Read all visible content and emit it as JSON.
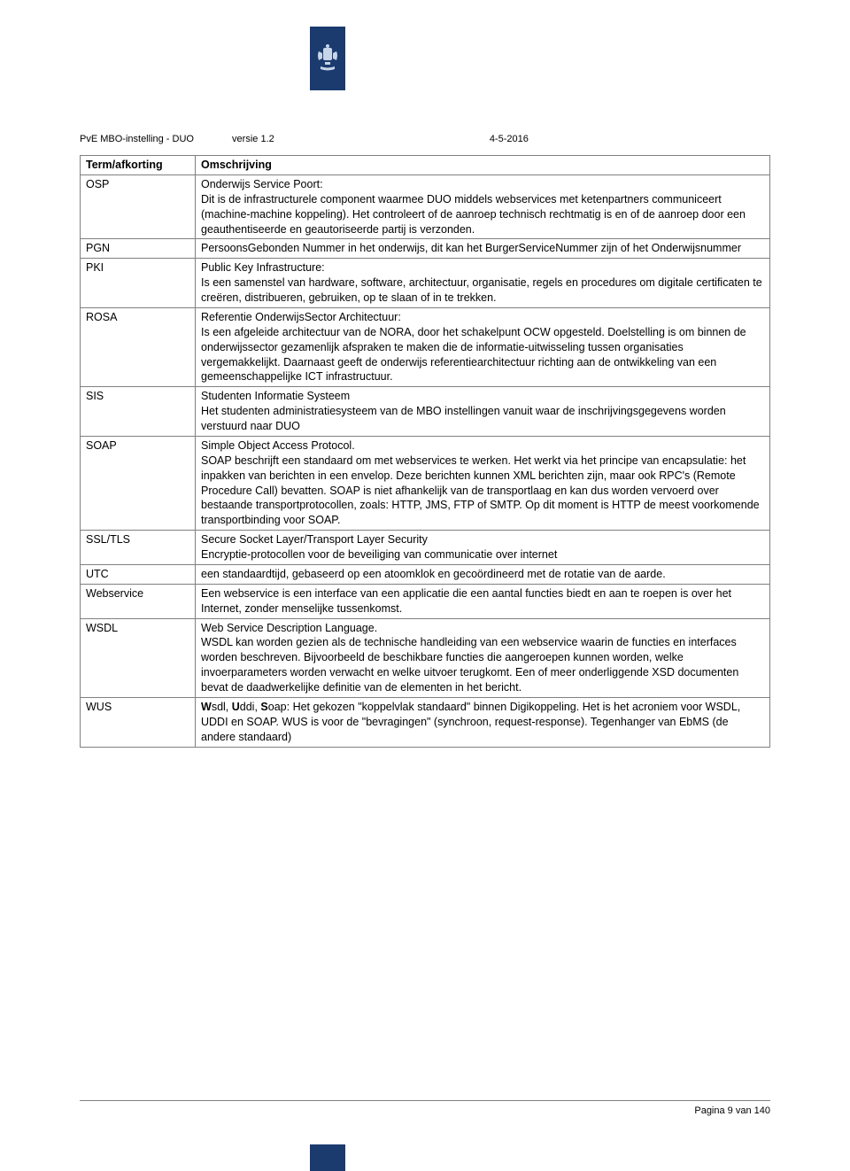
{
  "colors": {
    "logo_bg": "#1b3b6f",
    "border": "#808080",
    "text": "#000000",
    "background": "#ffffff"
  },
  "header": {
    "doc": "PvE MBO-instelling - DUO",
    "version": "versie 1.2",
    "date": "4-5-2016"
  },
  "table": {
    "col1_header": "Term/afkorting",
    "col2_header": "Omschrijving",
    "rows": [
      {
        "term": "OSP",
        "desc": "Onderwijs Service Poort:\nDit is de infrastructurele component waarmee DUO middels webservices met ketenpartners communiceert (machine-machine koppeling). Het controleert of de aanroep technisch rechtmatig is en of de aanroep door een geauthentiseerde en geautoriseerde partij is verzonden."
      },
      {
        "term": "PGN",
        "desc": "PersoonsGebonden Nummer in het onderwijs, dit kan het BurgerServiceNummer zijn of het Onderwijsnummer"
      },
      {
        "term": "PKI",
        "desc": "Public Key Infrastructure:\nIs een samenstel van hardware, software, architectuur, organisatie, regels en procedures om digitale certificaten te creëren, distribueren, gebruiken, op te slaan of in te trekken."
      },
      {
        "term": "ROSA",
        "desc": "Referentie OnderwijsSector Architectuur:\nIs een afgeleide architectuur van de NORA, door het schakelpunt OCW opgesteld. Doelstelling is om binnen de onderwijssector gezamenlijk afspraken te maken die de informatie-uitwisseling tussen organisaties vergemakkelijkt. Daarnaast geeft de onderwijs referentiearchitectuur richting aan de ontwikkeling van een gemeenschappelijke ICT infrastructuur."
      },
      {
        "term": "SIS",
        "desc": "Studenten Informatie Systeem\nHet studenten administratiesysteem van de MBO instellingen vanuit waar de inschrijvingsgegevens worden verstuurd naar DUO"
      },
      {
        "term": "SOAP",
        "desc": "Simple Object Access Protocol.\nSOAP beschrijft een standaard om met webservices te werken. Het werkt via het principe van encapsulatie: het inpakken van berichten in een envelop. Deze berichten kunnen XML berichten zijn, maar ook RPC's (Remote Procedure Call) bevatten. SOAP is niet afhankelijk van de transportlaag en kan dus worden vervoerd over bestaande transportprotocollen, zoals: HTTP, JMS, FTP of SMTP. Op dit moment is HTTP de meest voorkomende transportbinding voor SOAP."
      },
      {
        "term": "SSL/TLS",
        "desc": "Secure Socket Layer/Transport Layer Security\nEncryptie-protocollen voor de beveiliging van communicatie over internet"
      },
      {
        "term": "UTC",
        "desc": "een standaardtijd, gebaseerd op een atoomklok en gecoördineerd met de rotatie van de aarde."
      },
      {
        "term": "Webservice",
        "desc": "Een webservice is een interface van een applicatie die een aantal functies biedt en aan te roepen is over het Internet, zonder menselijke tussenkomst."
      },
      {
        "term": "WSDL",
        "desc": "Web Service Description Language.\nWSDL kan worden gezien als de technische handleiding van een webservice waarin de functies en interfaces worden beschreven. Bijvoorbeeld de beschikbare functies die aangeroepen kunnen worden, welke invoerparameters worden verwacht en welke uitvoer terugkomt. Een of meer onderliggende XSD documenten bevat de daadwerkelijke definitie van de elementen in het bericht."
      },
      {
        "term": "WUS",
        "desc_html": "<b>W</b>sdl, <b>U</b>ddi, <b>S</b>oap: Het gekozen \"koppelvlak standaard\" binnen Digikoppeling. Het is het acroniem voor WSDL, UDDI en SOAP. WUS is voor de \"bevragingen\" (synchroon, request-response). Tegenhanger van EbMS (de andere standaard)"
      }
    ]
  },
  "footer": {
    "page": "Pagina 9 van 140"
  }
}
